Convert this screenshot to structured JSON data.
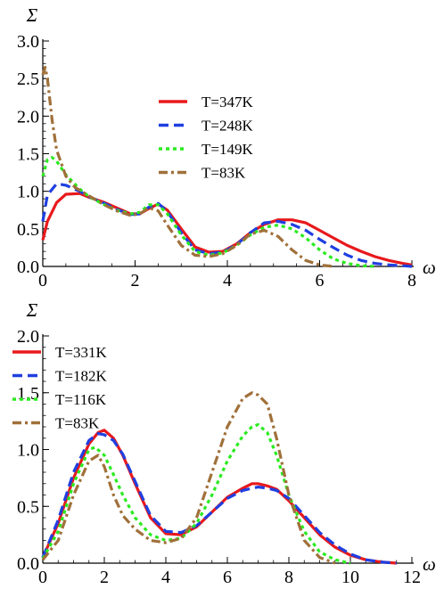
{
  "chart_data": [
    {
      "type": "line",
      "ylabel": "Σ",
      "xlabel": "ω",
      "xlim": [
        0,
        8
      ],
      "ylim": [
        0,
        3.0
      ],
      "xticks": [
        "0",
        "2",
        "4",
        "6",
        "8"
      ],
      "yticks": [
        "0.0",
        "0.5",
        "1.0",
        "1.5",
        "2.0",
        "2.5",
        "3.0"
      ],
      "legend_position": "upper-center",
      "series": [
        {
          "name": "T=347K",
          "color": "#e8191c",
          "dash": "solid",
          "x": [
            0,
            0.1,
            0.3,
            0.5,
            0.8,
            1.0,
            1.3,
            1.6,
            1.9,
            2.1,
            2.3,
            2.5,
            2.7,
            3.0,
            3.3,
            3.6,
            3.9,
            4.2,
            4.5,
            4.8,
            5.1,
            5.4,
            5.7,
            6.0,
            6.3,
            6.6,
            6.9,
            7.2,
            7.5,
            7.8,
            8.0
          ],
          "y": [
            0.35,
            0.6,
            0.85,
            0.96,
            0.97,
            0.92,
            0.86,
            0.78,
            0.7,
            0.7,
            0.77,
            0.83,
            0.75,
            0.5,
            0.26,
            0.19,
            0.2,
            0.3,
            0.45,
            0.56,
            0.62,
            0.62,
            0.58,
            0.48,
            0.38,
            0.28,
            0.2,
            0.13,
            0.08,
            0.04,
            0.02
          ]
        },
        {
          "name": "T=248K",
          "color": "#1f3fe0",
          "dash": "dashed",
          "x": [
            0,
            0.1,
            0.3,
            0.5,
            0.8,
            1.0,
            1.3,
            1.6,
            1.9,
            2.1,
            2.3,
            2.5,
            2.7,
            3.0,
            3.3,
            3.6,
            3.9,
            4.2,
            4.5,
            4.8,
            5.1,
            5.4,
            5.7,
            6.0,
            6.3,
            6.6,
            6.9,
            7.2,
            7.5,
            7.8,
            8.0
          ],
          "y": [
            0.6,
            0.95,
            1.1,
            1.08,
            1.0,
            0.93,
            0.85,
            0.76,
            0.69,
            0.7,
            0.79,
            0.84,
            0.73,
            0.45,
            0.22,
            0.17,
            0.19,
            0.29,
            0.45,
            0.58,
            0.6,
            0.56,
            0.48,
            0.36,
            0.25,
            0.15,
            0.08,
            0.04,
            0.02,
            0.01,
            0.0
          ]
        },
        {
          "name": "T=149K",
          "color": "#2aeb1f",
          "dash": "dotted",
          "x": [
            0,
            0.1,
            0.2,
            0.3,
            0.5,
            0.8,
            1.0,
            1.3,
            1.6,
            1.9,
            2.1,
            2.3,
            2.5,
            2.7,
            3.0,
            3.3,
            3.6,
            3.9,
            4.2,
            4.5,
            4.8,
            5.1,
            5.4,
            5.7,
            6.0,
            6.3,
            6.6,
            6.9,
            7.2
          ],
          "y": [
            1.2,
            1.42,
            1.45,
            1.4,
            1.22,
            1.03,
            0.93,
            0.83,
            0.75,
            0.7,
            0.72,
            0.82,
            0.82,
            0.7,
            0.42,
            0.2,
            0.15,
            0.18,
            0.28,
            0.42,
            0.52,
            0.55,
            0.5,
            0.38,
            0.22,
            0.1,
            0.04,
            0.01,
            0.0
          ]
        },
        {
          "name": "T=83K",
          "color": "#a0703a",
          "dash": "dashdot",
          "x": [
            0,
            0.05,
            0.1,
            0.2,
            0.3,
            0.5,
            0.7,
            1.0,
            1.3,
            1.6,
            1.9,
            2.1,
            2.3,
            2.5,
            2.7,
            3.0,
            3.3,
            3.6,
            3.9,
            4.2,
            4.5,
            4.8,
            5.1,
            5.4,
            5.7,
            6.0,
            6.3
          ],
          "y": [
            2.55,
            2.65,
            2.5,
            1.95,
            1.55,
            1.2,
            1.05,
            0.94,
            0.83,
            0.74,
            0.68,
            0.7,
            0.78,
            0.74,
            0.55,
            0.28,
            0.15,
            0.13,
            0.17,
            0.28,
            0.43,
            0.48,
            0.4,
            0.22,
            0.08,
            0.02,
            0.0
          ]
        }
      ]
    },
    {
      "type": "line",
      "ylabel": "Σ",
      "xlabel": "ω",
      "xlim": [
        0,
        12
      ],
      "ylim": [
        0,
        2.0
      ],
      "xticks": [
        "0",
        "2",
        "4",
        "6",
        "8",
        "10",
        "12"
      ],
      "yticks": [
        "0.0",
        "0.5",
        "1.0",
        "1.5",
        "2.0"
      ],
      "legend_position": "upper-left",
      "series": [
        {
          "name": "T=331K",
          "color": "#e8191c",
          "dash": "solid",
          "x": [
            0,
            0.5,
            1.0,
            1.5,
            1.8,
            2.0,
            2.3,
            2.6,
            3.0,
            3.5,
            4.0,
            4.5,
            5.0,
            5.5,
            6.0,
            6.5,
            6.8,
            7.0,
            7.3,
            7.6,
            8.0,
            8.5,
            9.0,
            9.5,
            10.0,
            10.5,
            11.0,
            11.5
          ],
          "y": [
            0.05,
            0.35,
            0.75,
            1.05,
            1.15,
            1.17,
            1.1,
            0.95,
            0.7,
            0.4,
            0.26,
            0.25,
            0.32,
            0.45,
            0.58,
            0.66,
            0.7,
            0.7,
            0.68,
            0.65,
            0.55,
            0.4,
            0.25,
            0.14,
            0.07,
            0.03,
            0.01,
            0.0
          ]
        },
        {
          "name": "T=182K",
          "color": "#1f3fe0",
          "dash": "dashed",
          "x": [
            0,
            0.5,
            1.0,
            1.5,
            1.8,
            2.0,
            2.3,
            2.6,
            3.0,
            3.5,
            4.0,
            4.5,
            5.0,
            5.5,
            6.0,
            6.5,
            6.8,
            7.0,
            7.3,
            7.6,
            8.0,
            8.5,
            9.0,
            9.5,
            10.0,
            10.5,
            11.0,
            11.5
          ],
          "y": [
            0.05,
            0.38,
            0.8,
            1.08,
            1.14,
            1.13,
            1.08,
            0.96,
            0.72,
            0.42,
            0.28,
            0.27,
            0.33,
            0.45,
            0.57,
            0.64,
            0.66,
            0.67,
            0.66,
            0.64,
            0.57,
            0.42,
            0.27,
            0.16,
            0.08,
            0.03,
            0.01,
            0.0
          ]
        },
        {
          "name": "T=116K",
          "color": "#2aeb1f",
          "dash": "dotted",
          "x": [
            0,
            0.5,
            1.0,
            1.5,
            1.7,
            2.0,
            2.3,
            2.6,
            3.0,
            3.5,
            4.0,
            4.5,
            5.0,
            5.5,
            6.0,
            6.5,
            6.8,
            7.0,
            7.3,
            7.6,
            8.0,
            8.5,
            9.0,
            9.5,
            10.0
          ],
          "y": [
            0.04,
            0.28,
            0.7,
            1.0,
            1.02,
            0.95,
            0.78,
            0.6,
            0.4,
            0.25,
            0.2,
            0.22,
            0.35,
            0.6,
            0.9,
            1.12,
            1.2,
            1.22,
            1.15,
            0.95,
            0.6,
            0.28,
            0.1,
            0.03,
            0.0
          ]
        },
        {
          "name": "T=83K",
          "color": "#a0703a",
          "dash": "dashdot",
          "x": [
            0,
            0.5,
            1.0,
            1.5,
            1.8,
            2.0,
            2.3,
            2.6,
            3.0,
            3.5,
            4.0,
            4.5,
            5.0,
            5.5,
            6.0,
            6.5,
            6.8,
            7.0,
            7.3,
            7.6,
            8.0,
            8.5,
            9.0,
            9.5
          ],
          "y": [
            0.03,
            0.2,
            0.6,
            0.9,
            0.95,
            0.85,
            0.6,
            0.42,
            0.3,
            0.2,
            0.18,
            0.22,
            0.4,
            0.8,
            1.2,
            1.45,
            1.5,
            1.48,
            1.4,
            1.1,
            0.6,
            0.2,
            0.05,
            0.0
          ]
        }
      ]
    }
  ]
}
